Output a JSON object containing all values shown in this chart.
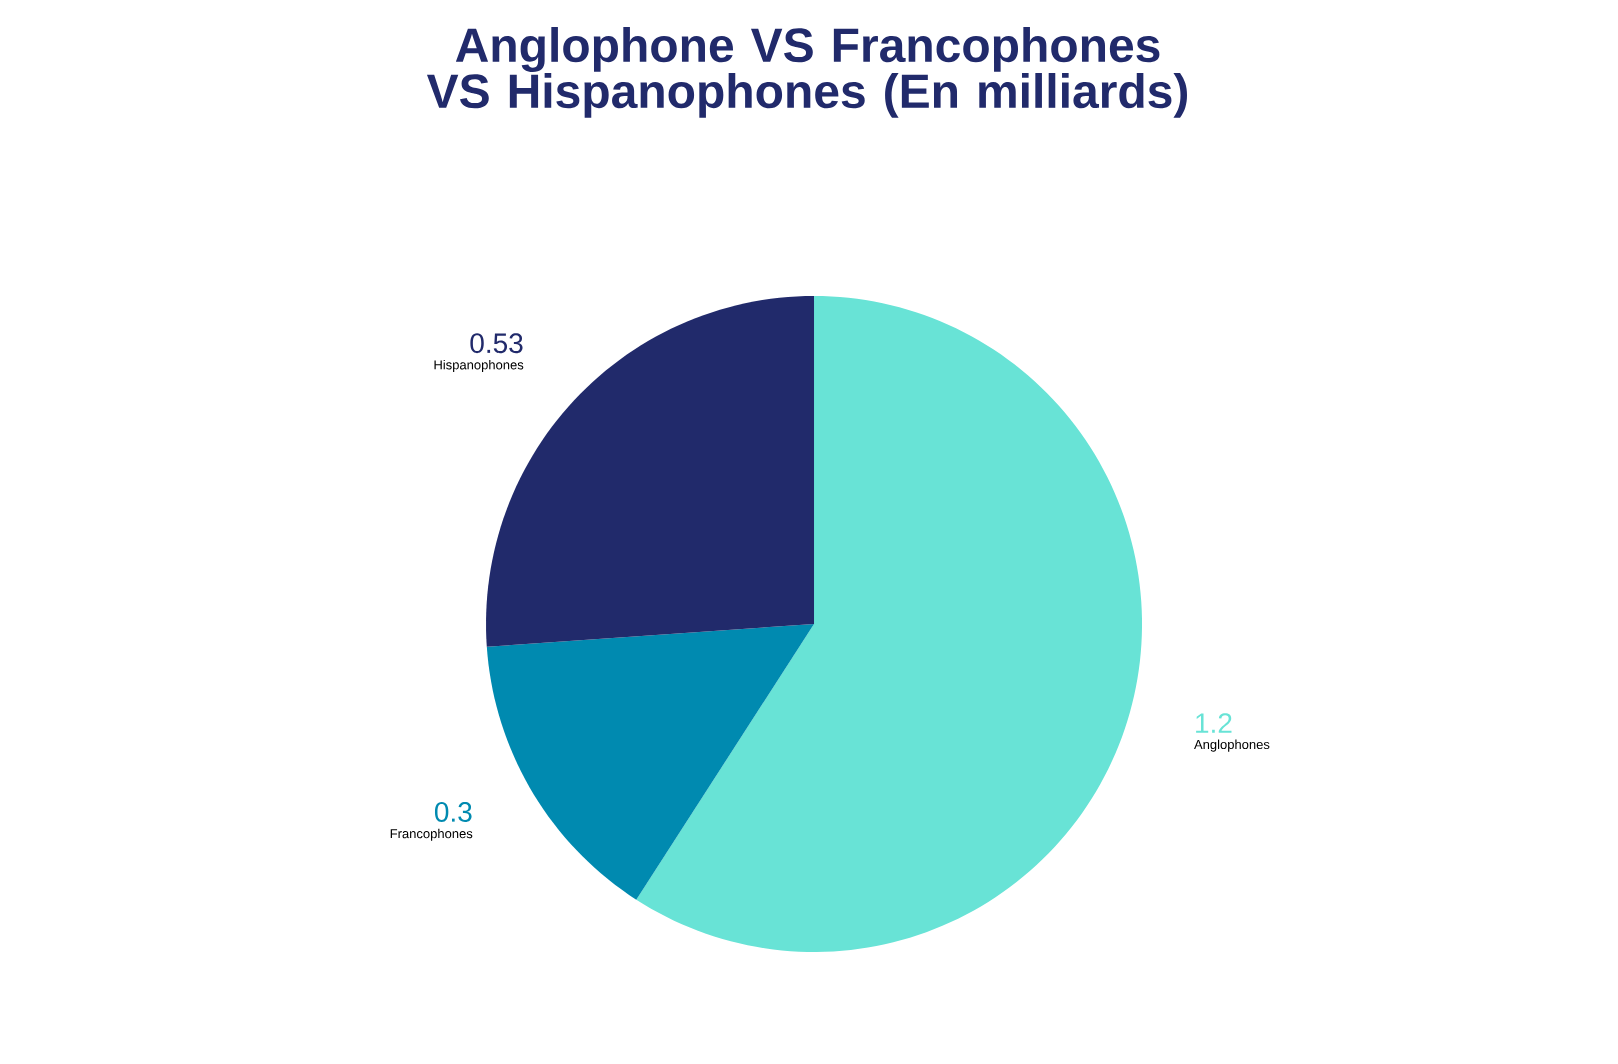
{
  "chart_data": {
    "type": "pie",
    "title": "Anglophone VS Francophones VS Hispanophones (En milliards)",
    "categories": [
      "Anglophones",
      "Francophones",
      "Hispanophones"
    ],
    "values": [
      1.2,
      0.3,
      0.53
    ],
    "colors": [
      "#68e3d6",
      "#008ab0",
      "#212a6b"
    ],
    "data_labels": true
  }
}
